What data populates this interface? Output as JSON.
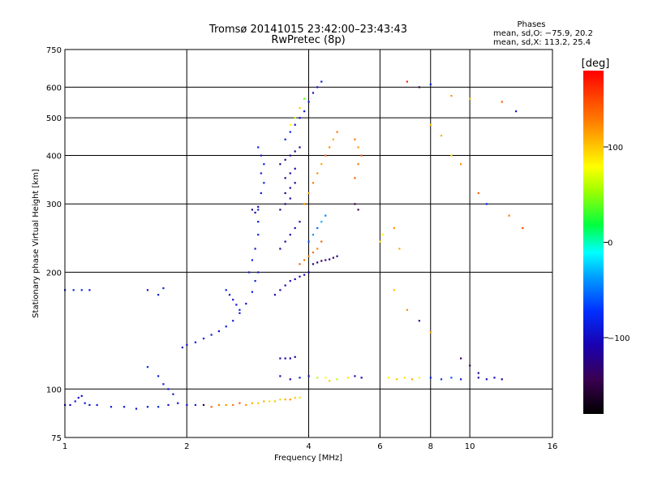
{
  "chart_data": {
    "type": "scatter",
    "title": "Tromsø 20141015 23:42:00–23:43:43",
    "subtitle": "RwPretec (8p)",
    "phase_info": {
      "title": "Phases",
      "line_o": "mean, sd,O: −75.9, 20.2",
      "line_x": "mean, sd,X: 113.2, 25.4"
    },
    "xlabel": "Frequency [MHz]",
    "ylabel": "Stationary phase Virtual Height [km]",
    "x_scale": "log",
    "y_scale": "log",
    "xlim": [
      1,
      16
    ],
    "ylim": [
      75,
      750
    ],
    "x_ticks": [
      1,
      2,
      4,
      6,
      8,
      10,
      16
    ],
    "x_tick_labels": [
      "1",
      "2",
      "4",
      "6",
      "8",
      "10",
      "16"
    ],
    "y_ticks": [
      75,
      100,
      200,
      300,
      400,
      500,
      600,
      750
    ],
    "y_tick_labels": [
      "75",
      "100",
      "200",
      "300",
      "400",
      "500",
      "600",
      "750"
    ],
    "grid": true,
    "colorbar": {
      "label": "[deg]",
      "range": [
        -180,
        180
      ],
      "ticks": [
        100,
        0,
        -100
      ],
      "tick_labels": [
        "100",
        "0",
        "−100"
      ]
    },
    "series": [
      {
        "values": [
          [
            1.0,
            91,
            -95
          ],
          [
            1.03,
            91,
            -100
          ],
          [
            1.06,
            93,
            -90
          ],
          [
            1.08,
            95,
            -100
          ],
          [
            1.1,
            96,
            -95
          ],
          [
            1.12,
            92,
            -90
          ],
          [
            1.15,
            91,
            -95
          ],
          [
            1.2,
            91,
            -90
          ],
          [
            1.3,
            90,
            -85
          ],
          [
            1.4,
            90,
            -90
          ],
          [
            1.5,
            89,
            -95
          ],
          [
            1.6,
            90,
            -90
          ],
          [
            1.7,
            90,
            -85
          ],
          [
            1.8,
            91,
            -95
          ],
          [
            1.9,
            92,
            -100
          ],
          [
            2.0,
            91,
            -95
          ],
          [
            2.1,
            91,
            -90
          ],
          [
            2.2,
            91,
            -150
          ],
          [
            2.3,
            90,
            140
          ],
          [
            2.4,
            91,
            130
          ],
          [
            2.5,
            91,
            120
          ],
          [
            2.6,
            91,
            130
          ],
          [
            2.7,
            92,
            140
          ],
          [
            2.8,
            91,
            120
          ],
          [
            2.9,
            92,
            110
          ],
          [
            3.0,
            92,
            100
          ],
          [
            3.1,
            93,
            110
          ],
          [
            3.2,
            93,
            90
          ],
          [
            3.3,
            93,
            100
          ],
          [
            3.4,
            94,
            95
          ],
          [
            3.5,
            94,
            110
          ],
          [
            3.6,
            94,
            120
          ],
          [
            3.7,
            95,
            100
          ],
          [
            3.8,
            95,
            90
          ],
          [
            1.0,
            180,
            -80
          ],
          [
            1.05,
            180,
            -85
          ],
          [
            1.1,
            180,
            -80
          ],
          [
            1.15,
            180,
            -90
          ],
          [
            1.6,
            180,
            -95
          ],
          [
            1.7,
            175,
            -90
          ],
          [
            1.75,
            182,
            -85
          ],
          [
            1.6,
            114,
            -80
          ],
          [
            1.7,
            108,
            -85
          ],
          [
            1.75,
            103,
            -90
          ],
          [
            1.8,
            100,
            -85
          ],
          [
            1.85,
            97,
            -95
          ],
          [
            1.95,
            128,
            -90
          ],
          [
            2.0,
            130,
            -95
          ],
          [
            2.1,
            132,
            -90
          ],
          [
            2.2,
            135,
            -85
          ],
          [
            2.3,
            138,
            -90
          ],
          [
            2.4,
            141,
            -95
          ],
          [
            2.5,
            145,
            -90
          ],
          [
            2.6,
            150,
            -85
          ],
          [
            2.7,
            157,
            -90
          ],
          [
            2.8,
            166,
            -95
          ],
          [
            2.9,
            178,
            -90
          ],
          [
            2.95,
            190,
            -85
          ],
          [
            3.0,
            200,
            -90
          ],
          [
            2.5,
            180,
            -85
          ],
          [
            2.55,
            175,
            -90
          ],
          [
            2.6,
            170,
            -95
          ],
          [
            2.65,
            165,
            -90
          ],
          [
            2.7,
            160,
            -85
          ],
          [
            2.85,
            200,
            -90
          ],
          [
            2.9,
            215,
            -85
          ],
          [
            2.95,
            230,
            -90
          ],
          [
            3.0,
            250,
            -85
          ],
          [
            3.0,
            270,
            -90
          ],
          [
            3.0,
            290,
            -85
          ],
          [
            3.05,
            320,
            -90
          ],
          [
            3.1,
            340,
            -85
          ],
          [
            3.05,
            360,
            -90
          ],
          [
            3.1,
            380,
            -85
          ],
          [
            3.05,
            400,
            -90
          ],
          [
            3.0,
            420,
            -85
          ],
          [
            2.9,
            290,
            -120
          ],
          [
            2.95,
            285,
            -110
          ],
          [
            3.0,
            295,
            -115
          ],
          [
            3.3,
            175,
            -100
          ],
          [
            3.4,
            180,
            -110
          ],
          [
            3.5,
            185,
            -105
          ],
          [
            3.6,
            190,
            -100
          ],
          [
            3.7,
            192,
            -110
          ],
          [
            3.8,
            195,
            -105
          ],
          [
            3.9,
            197,
            -100
          ],
          [
            4.0,
            200,
            -110
          ],
          [
            3.4,
            230,
            -115
          ],
          [
            3.5,
            240,
            -110
          ],
          [
            3.6,
            250,
            -105
          ],
          [
            3.7,
            260,
            -100
          ],
          [
            3.8,
            270,
            -110
          ],
          [
            3.4,
            290,
            -120
          ],
          [
            3.5,
            300,
            -115
          ],
          [
            3.6,
            310,
            -110
          ],
          [
            3.5,
            320,
            -120
          ],
          [
            3.6,
            330,
            -115
          ],
          [
            3.7,
            340,
            -110
          ],
          [
            3.5,
            350,
            -120
          ],
          [
            3.6,
            360,
            -115
          ],
          [
            3.7,
            370,
            -110
          ],
          [
            3.4,
            380,
            -120
          ],
          [
            3.5,
            390,
            -115
          ],
          [
            3.6,
            400,
            -110
          ],
          [
            3.7,
            410,
            -120
          ],
          [
            3.8,
            420,
            -115
          ],
          [
            3.5,
            440,
            -90
          ],
          [
            3.6,
            460,
            -85
          ],
          [
            3.7,
            480,
            -95
          ],
          [
            3.8,
            500,
            -100
          ],
          [
            3.9,
            520,
            -90
          ],
          [
            4.0,
            550,
            -95
          ],
          [
            4.1,
            580,
            -100
          ],
          [
            4.2,
            600,
            -95
          ],
          [
            4.3,
            620,
            -90
          ],
          [
            3.6,
            480,
            80
          ],
          [
            3.7,
            500,
            60
          ],
          [
            3.8,
            530,
            100
          ],
          [
            3.9,
            560,
            40
          ],
          [
            3.9,
            300,
            120
          ],
          [
            4.0,
            320,
            110
          ],
          [
            4.1,
            340,
            130
          ],
          [
            4.2,
            360,
            120
          ],
          [
            4.3,
            380,
            110
          ],
          [
            4.4,
            400,
            140
          ],
          [
            4.5,
            420,
            120
          ],
          [
            4.6,
            440,
            110
          ],
          [
            4.7,
            460,
            130
          ],
          [
            4.0,
            240,
            -60
          ],
          [
            4.1,
            250,
            -40
          ],
          [
            4.2,
            260,
            -50
          ],
          [
            4.3,
            270,
            -30
          ],
          [
            4.4,
            280,
            -45
          ],
          [
            3.8,
            210,
            140
          ],
          [
            3.9,
            215,
            130
          ],
          [
            4.0,
            220,
            120
          ],
          [
            4.1,
            225,
            135
          ],
          [
            4.2,
            230,
            125
          ],
          [
            4.3,
            240,
            140
          ],
          [
            4.1,
            210,
            -130
          ],
          [
            4.2,
            212,
            -135
          ],
          [
            4.3,
            214,
            -140
          ],
          [
            4.4,
            215,
            -130
          ],
          [
            4.5,
            216,
            -135
          ],
          [
            4.6,
            218,
            -140
          ],
          [
            4.7,
            220,
            -130
          ],
          [
            3.4,
            120,
            -120
          ],
          [
            3.5,
            120,
            -115
          ],
          [
            3.6,
            120,
            -110
          ],
          [
            3.7,
            121,
            -120
          ],
          [
            3.4,
            108,
            -100
          ],
          [
            3.6,
            106,
            -110
          ],
          [
            3.8,
            107,
            -90
          ],
          [
            4.0,
            108,
            -100
          ],
          [
            4.2,
            107,
            60
          ],
          [
            4.4,
            107,
            80
          ],
          [
            4.5,
            105,
            100
          ],
          [
            4.7,
            106,
            60
          ],
          [
            5.0,
            107,
            90
          ],
          [
            5.2,
            108,
            -100
          ],
          [
            5.4,
            107,
            -110
          ],
          [
            6.3,
            107,
            80
          ],
          [
            6.6,
            106,
            100
          ],
          [
            6.9,
            107,
            90
          ],
          [
            7.2,
            106,
            110
          ],
          [
            7.5,
            107,
            80
          ],
          [
            8.0,
            107,
            -80
          ],
          [
            8.5,
            106,
            -70
          ],
          [
            9.0,
            107,
            -60
          ],
          [
            9.5,
            106,
            -90
          ],
          [
            10.5,
            107,
            -110
          ],
          [
            11.0,
            106,
            -100
          ],
          [
            11.5,
            107,
            -105
          ],
          [
            12.0,
            106,
            -110
          ],
          [
            5.2,
            440,
            130
          ],
          [
            5.3,
            420,
            120
          ],
          [
            5.4,
            400,
            140
          ],
          [
            5.3,
            380,
            130
          ],
          [
            5.2,
            350,
            140
          ],
          [
            5.2,
            300,
            -150
          ],
          [
            5.3,
            290,
            -140
          ],
          [
            6.0,
            240,
            90
          ],
          [
            6.1,
            250,
            80
          ],
          [
            6.5,
            260,
            120
          ],
          [
            6.7,
            230,
            110
          ],
          [
            7.0,
            620,
            160
          ],
          [
            7.5,
            600,
            -150
          ],
          [
            8.0,
            610,
            -80
          ],
          [
            9.0,
            570,
            120
          ],
          [
            10.0,
            560,
            100
          ],
          [
            12.0,
            550,
            140
          ],
          [
            13.0,
            520,
            -90
          ],
          [
            8.0,
            480,
            100
          ],
          [
            8.5,
            450,
            110
          ],
          [
            9.0,
            400,
            90
          ],
          [
            9.5,
            380,
            120
          ],
          [
            10.5,
            320,
            140
          ],
          [
            11.0,
            300,
            -80
          ],
          [
            12.5,
            280,
            130
          ],
          [
            13.5,
            260,
            150
          ],
          [
            6.5,
            180,
            100
          ],
          [
            7.0,
            160,
            120
          ],
          [
            7.5,
            150,
            -100
          ],
          [
            8.0,
            140,
            110
          ],
          [
            9.5,
            120,
            -130
          ],
          [
            10.0,
            115,
            -140
          ],
          [
            10.5,
            110,
            -120
          ]
        ]
      }
    ]
  }
}
